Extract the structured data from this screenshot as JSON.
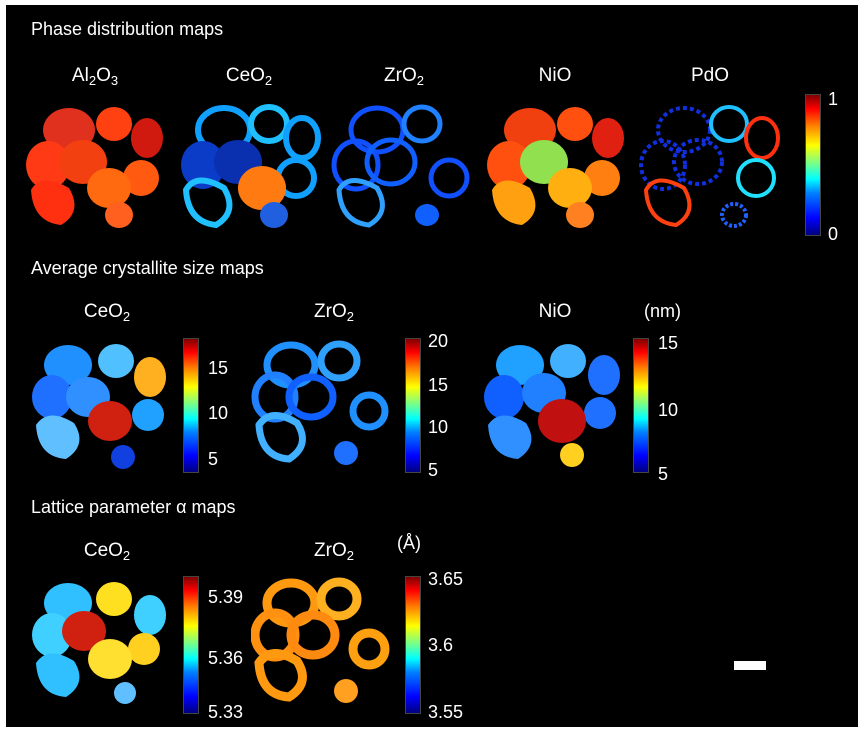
{
  "sections": {
    "phase": "Phase distribution maps",
    "size": "Average crystallite size maps",
    "lattice": "Lattice parameter α maps"
  },
  "phase_maps": [
    {
      "base": "Al",
      "sub": "2",
      "rest": "O",
      "sub2": "3"
    },
    {
      "base": "CeO",
      "sub": "2"
    },
    {
      "base": "ZrO",
      "sub": "2"
    },
    {
      "base": "NiO",
      "sub": ""
    },
    {
      "base": "PdO",
      "sub": ""
    }
  ],
  "phase_colorbar": {
    "max": "1",
    "min": "0"
  },
  "size_maps": [
    {
      "base": "CeO",
      "sub": "2",
      "ticks": [
        "15",
        "10",
        "5"
      ]
    },
    {
      "base": "ZrO",
      "sub": "2",
      "ticks": [
        "20",
        "15",
        "10",
        "5"
      ]
    },
    {
      "base": "NiO",
      "sub": "",
      "ticks": [
        "15",
        "10",
        "5"
      ]
    }
  ],
  "size_unit": "(nm)",
  "lattice_maps": [
    {
      "base": "CeO",
      "sub": "2",
      "ticks": [
        "5.39",
        "5.36",
        "5.33"
      ]
    },
    {
      "base": "ZrO",
      "sub": "2",
      "ticks": [
        "3.65",
        "3.6",
        "3.55"
      ]
    }
  ],
  "lattice_unit": "(Å)",
  "colors": {
    "background": "#000000",
    "text": "#ffffff",
    "colormap": "jet"
  }
}
